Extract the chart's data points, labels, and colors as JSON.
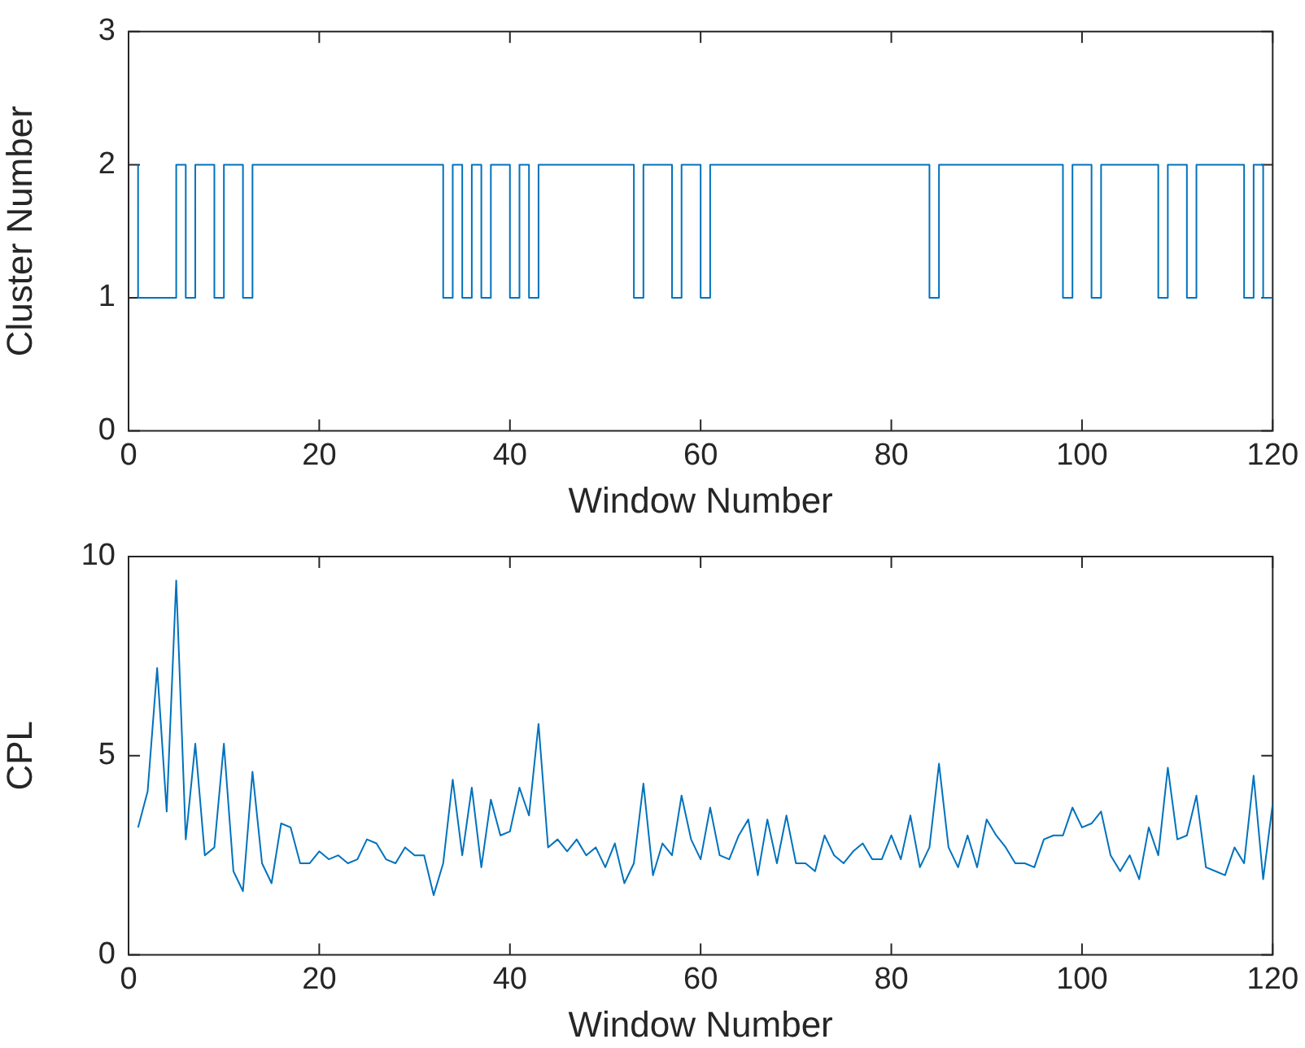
{
  "chart_data": [
    {
      "type": "step",
      "xlabel": "Window Number",
      "ylabel": "Cluster Number",
      "color": "#0072bd",
      "xlim": [
        0,
        120
      ],
      "ylim": [
        0,
        3
      ],
      "xticks": [
        0,
        20,
        40,
        60,
        80,
        100,
        120
      ],
      "yticks": [
        0,
        1,
        2,
        3
      ],
      "x": [
        1,
        2,
        3,
        4,
        5,
        6,
        7,
        8,
        9,
        10,
        11,
        12,
        13,
        14,
        15,
        16,
        17,
        18,
        19,
        20,
        21,
        22,
        23,
        24,
        25,
        26,
        27,
        28,
        29,
        30,
        31,
        32,
        33,
        34,
        35,
        36,
        37,
        38,
        39,
        40,
        41,
        42,
        43,
        44,
        45,
        46,
        47,
        48,
        49,
        50,
        51,
        52,
        53,
        54,
        55,
        56,
        57,
        58,
        59,
        60,
        61,
        62,
        63,
        64,
        65,
        66,
        67,
        68,
        69,
        70,
        71,
        72,
        73,
        74,
        75,
        76,
        77,
        78,
        79,
        80,
        81,
        82,
        83,
        84,
        85,
        86,
        87,
        88,
        89,
        90,
        91,
        92,
        93,
        94,
        95,
        96,
        97,
        98,
        99,
        100,
        101,
        102,
        103,
        104,
        105,
        106,
        107,
        108,
        109,
        110,
        111,
        112,
        113,
        114,
        115,
        116,
        117,
        118,
        119,
        120
      ],
      "values": [
        2,
        1,
        1,
        1,
        1,
        2,
        1,
        2,
        2,
        1,
        2,
        2,
        1,
        2,
        2,
        2,
        2,
        2,
        2,
        2,
        2,
        2,
        2,
        2,
        2,
        2,
        2,
        2,
        2,
        2,
        2,
        2,
        2,
        1,
        2,
        1,
        2,
        1,
        2,
        2,
        1,
        2,
        1,
        2,
        2,
        2,
        2,
        2,
        2,
        2,
        2,
        2,
        2,
        1,
        2,
        2,
        2,
        1,
        2,
        2,
        1,
        2,
        2,
        2,
        2,
        2,
        2,
        2,
        2,
        2,
        2,
        2,
        2,
        2,
        2,
        2,
        2,
        2,
        2,
        2,
        2,
        2,
        2,
        2,
        1,
        2,
        2,
        2,
        2,
        2,
        2,
        2,
        2,
        2,
        2,
        2,
        2,
        2,
        1,
        2,
        2,
        1,
        2,
        2,
        2,
        2,
        2,
        2,
        1,
        2,
        2,
        1,
        2,
        2,
        2,
        2,
        2,
        1,
        2,
        1
      ]
    },
    {
      "type": "line",
      "xlabel": "Window Number",
      "ylabel": "CPL",
      "color": "#0072bd",
      "xlim": [
        0,
        120
      ],
      "ylim": [
        0,
        10
      ],
      "xticks": [
        0,
        20,
        40,
        60,
        80,
        100,
        120
      ],
      "yticks": [
        0,
        5,
        10
      ],
      "x": [
        1,
        2,
        3,
        4,
        5,
        6,
        7,
        8,
        9,
        10,
        11,
        12,
        13,
        14,
        15,
        16,
        17,
        18,
        19,
        20,
        21,
        22,
        23,
        24,
        25,
        26,
        27,
        28,
        29,
        30,
        31,
        32,
        33,
        34,
        35,
        36,
        37,
        38,
        39,
        40,
        41,
        42,
        43,
        44,
        45,
        46,
        47,
        48,
        49,
        50,
        51,
        52,
        53,
        54,
        55,
        56,
        57,
        58,
        59,
        60,
        61,
        62,
        63,
        64,
        65,
        66,
        67,
        68,
        69,
        70,
        71,
        72,
        73,
        74,
        75,
        76,
        77,
        78,
        79,
        80,
        81,
        82,
        83,
        84,
        85,
        86,
        87,
        88,
        89,
        90,
        91,
        92,
        93,
        94,
        95,
        96,
        97,
        98,
        99,
        100,
        101,
        102,
        103,
        104,
        105,
        106,
        107,
        108,
        109,
        110,
        111,
        112,
        113,
        114,
        115,
        116,
        117,
        118,
        119,
        120
      ],
      "values": [
        3.2,
        4.1,
        7.2,
        3.6,
        9.4,
        2.9,
        5.3,
        2.5,
        2.7,
        5.3,
        2.1,
        1.6,
        4.6,
        2.3,
        1.8,
        3.3,
        3.2,
        2.3,
        2.3,
        2.6,
        2.4,
        2.5,
        2.3,
        2.4,
        2.9,
        2.8,
        2.4,
        2.3,
        2.7,
        2.5,
        2.5,
        1.5,
        2.3,
        4.4,
        2.5,
        4.2,
        2.2,
        3.9,
        3.0,
        3.1,
        4.2,
        3.5,
        5.8,
        2.7,
        2.9,
        2.6,
        2.9,
        2.5,
        2.7,
        2.2,
        2.8,
        1.8,
        2.3,
        4.3,
        2.0,
        2.8,
        2.5,
        4.0,
        2.9,
        2.4,
        3.7,
        2.5,
        2.4,
        3.0,
        3.4,
        2.0,
        3.4,
        2.3,
        3.5,
        2.3,
        2.3,
        2.1,
        3.0,
        2.5,
        2.3,
        2.6,
        2.8,
        2.4,
        2.4,
        3.0,
        2.4,
        3.5,
        2.2,
        2.7,
        4.8,
        2.7,
        2.2,
        3.0,
        2.2,
        3.4,
        3.0,
        2.7,
        2.3,
        2.3,
        2.2,
        2.9,
        3.0,
        3.0,
        3.7,
        3.2,
        3.3,
        3.6,
        2.5,
        2.1,
        2.5,
        1.9,
        3.2,
        2.5,
        4.7,
        2.9,
        3.0,
        4.0,
        2.2,
        2.1,
        2.0,
        2.7,
        2.3,
        4.5,
        1.9,
        3.8
      ]
    }
  ]
}
